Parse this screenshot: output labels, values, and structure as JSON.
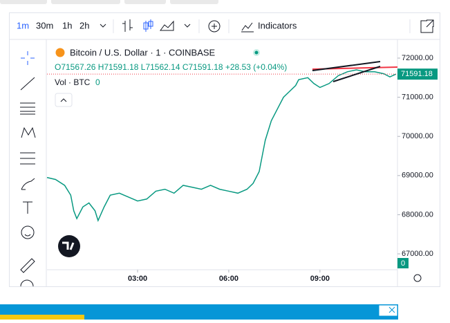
{
  "toolbar": {
    "intervals": [
      "1m",
      "30m",
      "1h",
      "2h"
    ],
    "indicators": "Indicators"
  },
  "chart_data": {
    "type": "line",
    "title": "Bitcoin / U.S. Dollar · 1 · COINBASE",
    "ohlc": "O71567.26 H71591.18 L71562.14 C71591.18 +28.53 (+0.04%)",
    "volume_label": "Vol · BTC",
    "volume_value": 0,
    "last_price": 71591.18,
    "color": "#089981",
    "x": [
      0.02,
      0.3,
      0.6,
      0.8,
      0.9,
      1.0,
      1.2,
      1.4,
      1.6,
      1.7,
      1.9,
      2.1,
      2.4,
      2.7,
      3.0,
      3.3,
      3.6,
      3.9,
      4.2,
      4.5,
      4.8,
      5.1,
      5.4,
      5.7,
      6.0,
      6.3,
      6.6,
      6.8,
      7.0,
      7.1,
      7.2,
      7.4,
      7.6,
      7.8,
      8.0,
      8.2,
      8.3,
      8.6,
      8.8,
      9.0,
      9.3,
      9.6,
      9.9,
      10.2,
      10.5,
      10.8,
      11.1,
      11.3,
      11.5
    ],
    "values": [
      68950,
      68900,
      68750,
      68500,
      68100,
      67900,
      68200,
      68300,
      68100,
      67850,
      68200,
      68500,
      68550,
      68450,
      68350,
      68400,
      68600,
      68650,
      68550,
      68750,
      68700,
      68650,
      68750,
      68650,
      68600,
      68550,
      68650,
      68800,
      69100,
      69500,
      69900,
      70400,
      70700,
      71000,
      71150,
      71300,
      71450,
      71500,
      71350,
      71250,
      71350,
      71550,
      71650,
      71700,
      71650,
      71650,
      71600,
      71520,
      71591.18
    ],
    "xlim": [
      0.02,
      11.55
    ],
    "xticks": [
      {
        "value": 3,
        "label": "03:00"
      },
      {
        "value": 6,
        "label": "06:00"
      },
      {
        "value": 9,
        "label": "09:00"
      }
    ],
    "ylim": [
      66594,
      72424
    ],
    "yticks": [
      {
        "value": 67000,
        "label": "67000.00"
      },
      {
        "value": 68000,
        "label": "68000.00"
      },
      {
        "value": 69000,
        "label": "69000.00"
      },
      {
        "value": 70000,
        "label": "70000.00"
      },
      {
        "value": 71000,
        "label": "71000.00"
      },
      {
        "value": 72000,
        "label": "72000.00"
      }
    ]
  }
}
